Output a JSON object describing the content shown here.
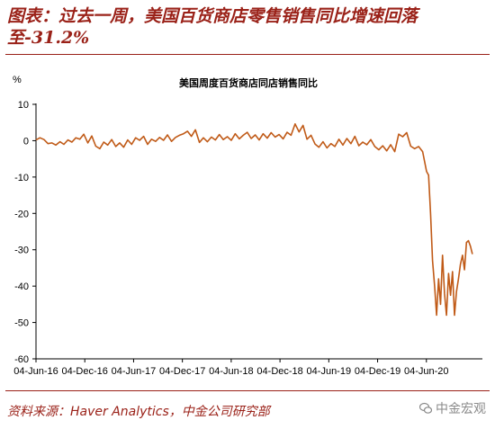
{
  "figure": {
    "title": "图表：过去一周，美国百货商店零售销售同比增速回落至-31.2%",
    "source": "资料来源：Haver Analytics，中金公司研究部",
    "watermark": "中金宏观"
  },
  "colors": {
    "accent": "#9a2118",
    "series": "#c05a17"
  },
  "chart_data": {
    "type": "line",
    "title": "美国周度百货商店同店销售同比",
    "ylabel": "%",
    "xlabel": "",
    "ylim": [
      -60,
      10
    ],
    "yticks": [
      "10",
      "0",
      "-10",
      "-20",
      "-30",
      "-40",
      "-50",
      "-60"
    ],
    "xticks": [
      "04-Jun-16",
      "04-Dec-16",
      "04-Jun-17",
      "04-Dec-17",
      "04-Jun-18",
      "04-Dec-18",
      "04-Jun-19",
      "04-Dec-19",
      "04-Jun-20"
    ],
    "x_range": [
      "2016-06-04",
      "2020-09-19"
    ],
    "grid": false,
    "legend": "none",
    "series": [
      {
        "values": [
          [
            "2016-06-04",
            0.2
          ],
          [
            "2016-06-18",
            0.8
          ],
          [
            "2016-07-02",
            0.3
          ],
          [
            "2016-07-16",
            -0.8
          ],
          [
            "2016-07-30",
            -0.6
          ],
          [
            "2016-08-13",
            -1.2
          ],
          [
            "2016-08-27",
            -0.3
          ],
          [
            "2016-09-10",
            -1.0
          ],
          [
            "2016-09-24",
            0.2
          ],
          [
            "2016-10-08",
            -0.4
          ],
          [
            "2016-10-22",
            0.8
          ],
          [
            "2016-11-05",
            0.4
          ],
          [
            "2016-11-19",
            1.8
          ],
          [
            "2016-12-03",
            -0.6
          ],
          [
            "2016-12-17",
            1.3
          ],
          [
            "2016-12-31",
            -1.5
          ],
          [
            "2017-01-14",
            -2.2
          ],
          [
            "2017-01-28",
            -0.4
          ],
          [
            "2017-02-11",
            -1.2
          ],
          [
            "2017-02-25",
            0.3
          ],
          [
            "2017-03-11",
            -1.6
          ],
          [
            "2017-03-25",
            -0.6
          ],
          [
            "2017-04-08",
            -1.8
          ],
          [
            "2017-04-22",
            0.2
          ],
          [
            "2017-05-06",
            -1.0
          ],
          [
            "2017-05-20",
            0.8
          ],
          [
            "2017-06-03",
            0.1
          ],
          [
            "2017-06-17",
            1.2
          ],
          [
            "2017-07-01",
            -1.0
          ],
          [
            "2017-07-15",
            0.4
          ],
          [
            "2017-07-29",
            -0.2
          ],
          [
            "2017-08-12",
            0.9
          ],
          [
            "2017-08-26",
            0.1
          ],
          [
            "2017-09-09",
            1.6
          ],
          [
            "2017-09-23",
            -0.2
          ],
          [
            "2017-10-07",
            0.9
          ],
          [
            "2017-10-21",
            1.5
          ],
          [
            "2017-11-04",
            1.9
          ],
          [
            "2017-11-18",
            2.6
          ],
          [
            "2017-12-02",
            1.2
          ],
          [
            "2017-12-16",
            3.0
          ],
          [
            "2017-12-30",
            -0.5
          ],
          [
            "2018-01-13",
            0.8
          ],
          [
            "2018-01-27",
            -0.3
          ],
          [
            "2018-02-10",
            1.0
          ],
          [
            "2018-02-24",
            0.2
          ],
          [
            "2018-03-10",
            1.7
          ],
          [
            "2018-03-24",
            0.3
          ],
          [
            "2018-04-07",
            1.1
          ],
          [
            "2018-04-21",
            0.1
          ],
          [
            "2018-05-05",
            1.9
          ],
          [
            "2018-05-19",
            0.5
          ],
          [
            "2018-06-02",
            1.5
          ],
          [
            "2018-06-16",
            2.3
          ],
          [
            "2018-06-30",
            0.6
          ],
          [
            "2018-07-14",
            1.6
          ],
          [
            "2018-07-28",
            0.2
          ],
          [
            "2018-08-11",
            1.9
          ],
          [
            "2018-08-25",
            0.7
          ],
          [
            "2018-09-08",
            2.2
          ],
          [
            "2018-09-22",
            1.0
          ],
          [
            "2018-10-06",
            1.7
          ],
          [
            "2018-10-20",
            0.5
          ],
          [
            "2018-11-03",
            2.3
          ],
          [
            "2018-11-17",
            1.5
          ],
          [
            "2018-12-01",
            4.6
          ],
          [
            "2018-12-15",
            2.4
          ],
          [
            "2018-12-29",
            4.2
          ],
          [
            "2019-01-12",
            0.4
          ],
          [
            "2019-01-26",
            1.5
          ],
          [
            "2019-02-09",
            -0.9
          ],
          [
            "2019-02-23",
            -1.8
          ],
          [
            "2019-03-09",
            -0.3
          ],
          [
            "2019-03-23",
            -2.0
          ],
          [
            "2019-04-06",
            -0.8
          ],
          [
            "2019-04-20",
            -1.6
          ],
          [
            "2019-05-04",
            0.4
          ],
          [
            "2019-05-18",
            -1.2
          ],
          [
            "2019-06-01",
            0.6
          ],
          [
            "2019-06-15",
            -0.8
          ],
          [
            "2019-06-29",
            1.2
          ],
          [
            "2019-07-13",
            -1.4
          ],
          [
            "2019-07-27",
            -0.4
          ],
          [
            "2019-08-10",
            -1.1
          ],
          [
            "2019-08-24",
            0.3
          ],
          [
            "2019-09-07",
            -1.6
          ],
          [
            "2019-09-21",
            -2.5
          ],
          [
            "2019-10-05",
            -1.4
          ],
          [
            "2019-10-19",
            -2.8
          ],
          [
            "2019-11-02",
            -1.1
          ],
          [
            "2019-11-16",
            -3.0
          ],
          [
            "2019-11-30",
            1.8
          ],
          [
            "2019-12-14",
            1.1
          ],
          [
            "2019-12-28",
            2.2
          ],
          [
            "2020-01-11",
            -1.5
          ],
          [
            "2020-01-25",
            -2.2
          ],
          [
            "2020-02-08",
            -1.6
          ],
          [
            "2020-02-22",
            -3.0
          ],
          [
            "2020-03-07",
            -8.5
          ],
          [
            "2020-03-14",
            -9.5
          ],
          [
            "2020-03-21",
            -20.0
          ],
          [
            "2020-03-28",
            -33.0
          ],
          [
            "2020-04-04",
            -40.0
          ],
          [
            "2020-04-11",
            -48.0
          ],
          [
            "2020-04-18",
            -38.0
          ],
          [
            "2020-04-25",
            -45.0
          ],
          [
            "2020-05-02",
            -31.5
          ],
          [
            "2020-05-09",
            -42.0
          ],
          [
            "2020-05-16",
            -48.0
          ],
          [
            "2020-05-23",
            -36.5
          ],
          [
            "2020-05-30",
            -42.5
          ],
          [
            "2020-06-06",
            -36.0
          ],
          [
            "2020-06-13",
            -48.0
          ],
          [
            "2020-06-20",
            -41.5
          ],
          [
            "2020-06-27",
            -38.0
          ],
          [
            "2020-07-04",
            -34.0
          ],
          [
            "2020-07-11",
            -31.5
          ],
          [
            "2020-07-18",
            -35.5
          ],
          [
            "2020-07-25",
            -28.0
          ],
          [
            "2020-08-01",
            -27.5
          ],
          [
            "2020-08-08",
            -29.0
          ],
          [
            "2020-08-15",
            -31.2
          ]
        ]
      }
    ]
  }
}
